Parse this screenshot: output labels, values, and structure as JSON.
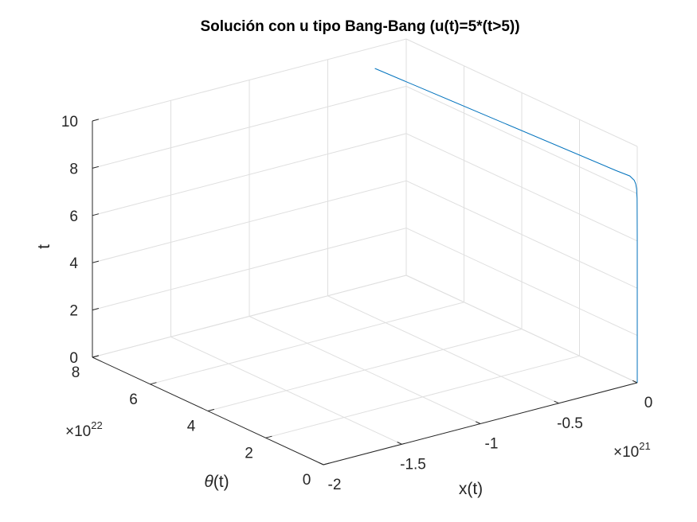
{
  "chart_data": {
    "type": "line",
    "projection": "3d",
    "title": "Solución con u tipo Bang-Bang (u(t)=5*(t>5))",
    "xlabel": "x(t)",
    "ylabel": "θ(t)",
    "zlabel": "t",
    "x_multiplier": "×10^21",
    "y_multiplier": "×10^22",
    "xlim": [
      -2e+21,
      0
    ],
    "ylim": [
      0,
      8e+22
    ],
    "zlim": [
      0,
      10
    ],
    "x_ticks": [
      -2,
      -1.5,
      -1,
      -0.5,
      0
    ],
    "x_tick_labels": [
      "-2",
      "-1.5",
      "-1",
      "-0.5",
      "0"
    ],
    "y_ticks": [
      0,
      2,
      4,
      6,
      8
    ],
    "y_tick_labels": [
      "0",
      "2",
      "4",
      "6",
      "8"
    ],
    "z_ticks": [
      0,
      2,
      4,
      6,
      8,
      10
    ],
    "z_tick_labels": [
      "0",
      "2",
      "4",
      "6",
      "8",
      "10"
    ],
    "grid": true,
    "line_color": "#0072bd",
    "series": [
      {
        "x": [
          0,
          0,
          0,
          0,
          -1e+18,
          -1e+18,
          -2e+18,
          -4e+18,
          -8e+18,
          -2e+19,
          -6e+19,
          -2e+20
        ],
        "y": [
          0,
          0,
          0,
          0,
          0,
          1e+20,
          1e+20,
          3e+20,
          6e+20,
          1.5e+21,
          4e+21,
          8e+22
        ],
        "z": [
          0,
          2,
          4,
          6,
          7.8,
          8.0,
          8.2,
          8.4,
          8.55,
          8.7,
          8.85,
          9.1
        ]
      }
    ]
  }
}
